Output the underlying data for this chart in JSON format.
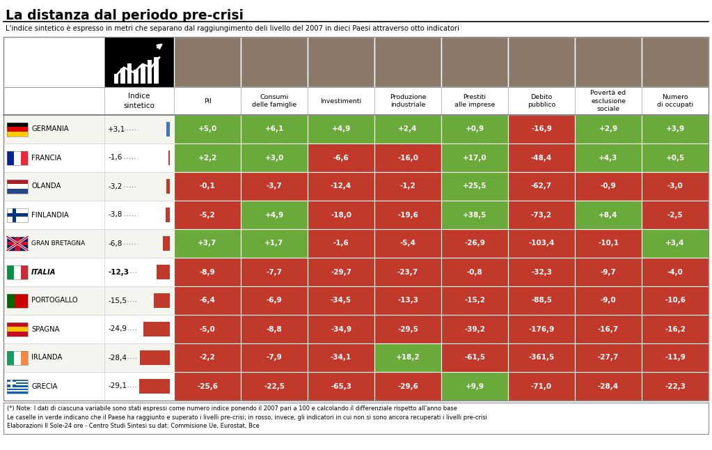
{
  "title": "La distanza dal periodo pre-crisi",
  "subtitle": "L'indice sintetico è espresso in metri che separano dal raggiungimento deli livello del 2007 in dieci Paesi attraverso otto indicatori",
  "footer": "(*) Note: I dati di ciascuna variabile sono stati espressi come numero indice ponendo il 2007 pari a 100 e calcolando il differenziale rispetto all'anno base\nLe caselle in verde indicano che il Paese ha raggiunto e superato i livelli pre-crisi; in rosso, invece, gli indicatori in cui non si sono ancora recuperati i livelli pre-crisi\nElaborazioni Il Sole-24 ore - Centro Studi Sintesi su dat: Commisione Ue, Eurostat, Bce",
  "col_labels": [
    "Pil",
    "Consumi\ndelle famiglie",
    "Investimenti",
    "Produzione\nindustriale",
    "Prestiti\nalle imprese",
    "Debito\npubblico",
    "Povertà ed\nesclusione\nsociale",
    "Numero\ndi occupati"
  ],
  "countries": [
    "GERMANIA",
    "FRANCIA",
    "OLANDA",
    "FINLANDIA",
    "GRAN\nBRETAGNA",
    "ITALIA",
    "PORTOGALLO",
    "SPAGNA",
    "IRLANDA",
    "GRECIA"
  ],
  "indice": [
    "+3,1",
    "-1,6",
    "-3,2",
    "-3,8",
    "-6,8",
    "-12,3",
    "-15,5",
    "-24,9",
    "-28,4",
    "-29,1"
  ],
  "indice_vals": [
    3.1,
    -1.6,
    -3.2,
    -3.8,
    -6.8,
    -12.3,
    -15.5,
    -24.9,
    -28.4,
    -29.1
  ],
  "data": [
    [
      "+5,0",
      "+6,1",
      "+4,9",
      "+2,4",
      "+0,9",
      "-16,9",
      "+2,9",
      "+3,9"
    ],
    [
      "+2,2",
      "+3,0",
      "-6,6",
      "-16,0",
      "+17,0",
      "-48,4",
      "+4,3",
      "+0,5"
    ],
    [
      "-0,1",
      "-3,7",
      "-12,4",
      "-1,2",
      "+25,5",
      "-62,7",
      "-0,9",
      "-3,0"
    ],
    [
      "-5,2",
      "+4,9",
      "-18,0",
      "-19,6",
      "+38,5",
      "-73,2",
      "+8,4",
      "-2,5"
    ],
    [
      "+3,7",
      "+1,7",
      "-1,6",
      "-5,4",
      "-26,9",
      "-103,4",
      "-10,1",
      "+3,4"
    ],
    [
      "-8,9",
      "-7,7",
      "-29,7",
      "-23,7",
      "-0,8",
      "-32,3",
      "-9,7",
      "-4,0"
    ],
    [
      "-6,4",
      "-6,9",
      "-34,5",
      "-13,3",
      "-15,2",
      "-88,5",
      "-9,0",
      "-10,6"
    ],
    [
      "-5,0",
      "-8,8",
      "-34,9",
      "-29,5",
      "-39,2",
      "-176,9",
      "-16,7",
      "-16,2"
    ],
    [
      "-2,2",
      "-7,9",
      "-34,1",
      "+18,2",
      "-61,5",
      "-361,5",
      "-27,7",
      "-11,9"
    ],
    [
      "-25,6",
      "-22,5",
      "-65,3",
      "-29,6",
      "+9,9",
      "-71,0",
      "-28,4",
      "-22,3"
    ]
  ],
  "colors": [
    [
      "green",
      "green",
      "green",
      "green",
      "green",
      "red",
      "green",
      "green"
    ],
    [
      "green",
      "green",
      "red",
      "red",
      "green",
      "red",
      "green",
      "green"
    ],
    [
      "red",
      "red",
      "red",
      "red",
      "green",
      "red",
      "red",
      "red"
    ],
    [
      "red",
      "green",
      "red",
      "red",
      "green",
      "red",
      "green",
      "red"
    ],
    [
      "green",
      "green",
      "red",
      "red",
      "red",
      "red",
      "red",
      "green"
    ],
    [
      "red",
      "red",
      "red",
      "red",
      "red",
      "red",
      "red",
      "red"
    ],
    [
      "red",
      "red",
      "red",
      "red",
      "red",
      "red",
      "red",
      "red"
    ],
    [
      "red",
      "red",
      "red",
      "red",
      "red",
      "red",
      "red",
      "red"
    ],
    [
      "red",
      "red",
      "red",
      "green",
      "red",
      "red",
      "red",
      "red"
    ],
    [
      "red",
      "red",
      "red",
      "red",
      "green",
      "red",
      "red",
      "red"
    ]
  ],
  "green_color": "#6aaa3a",
  "red_color": "#c0392b",
  "header_bg": "#8a7968",
  "bold_italic_countries": [
    "ITALIA"
  ]
}
